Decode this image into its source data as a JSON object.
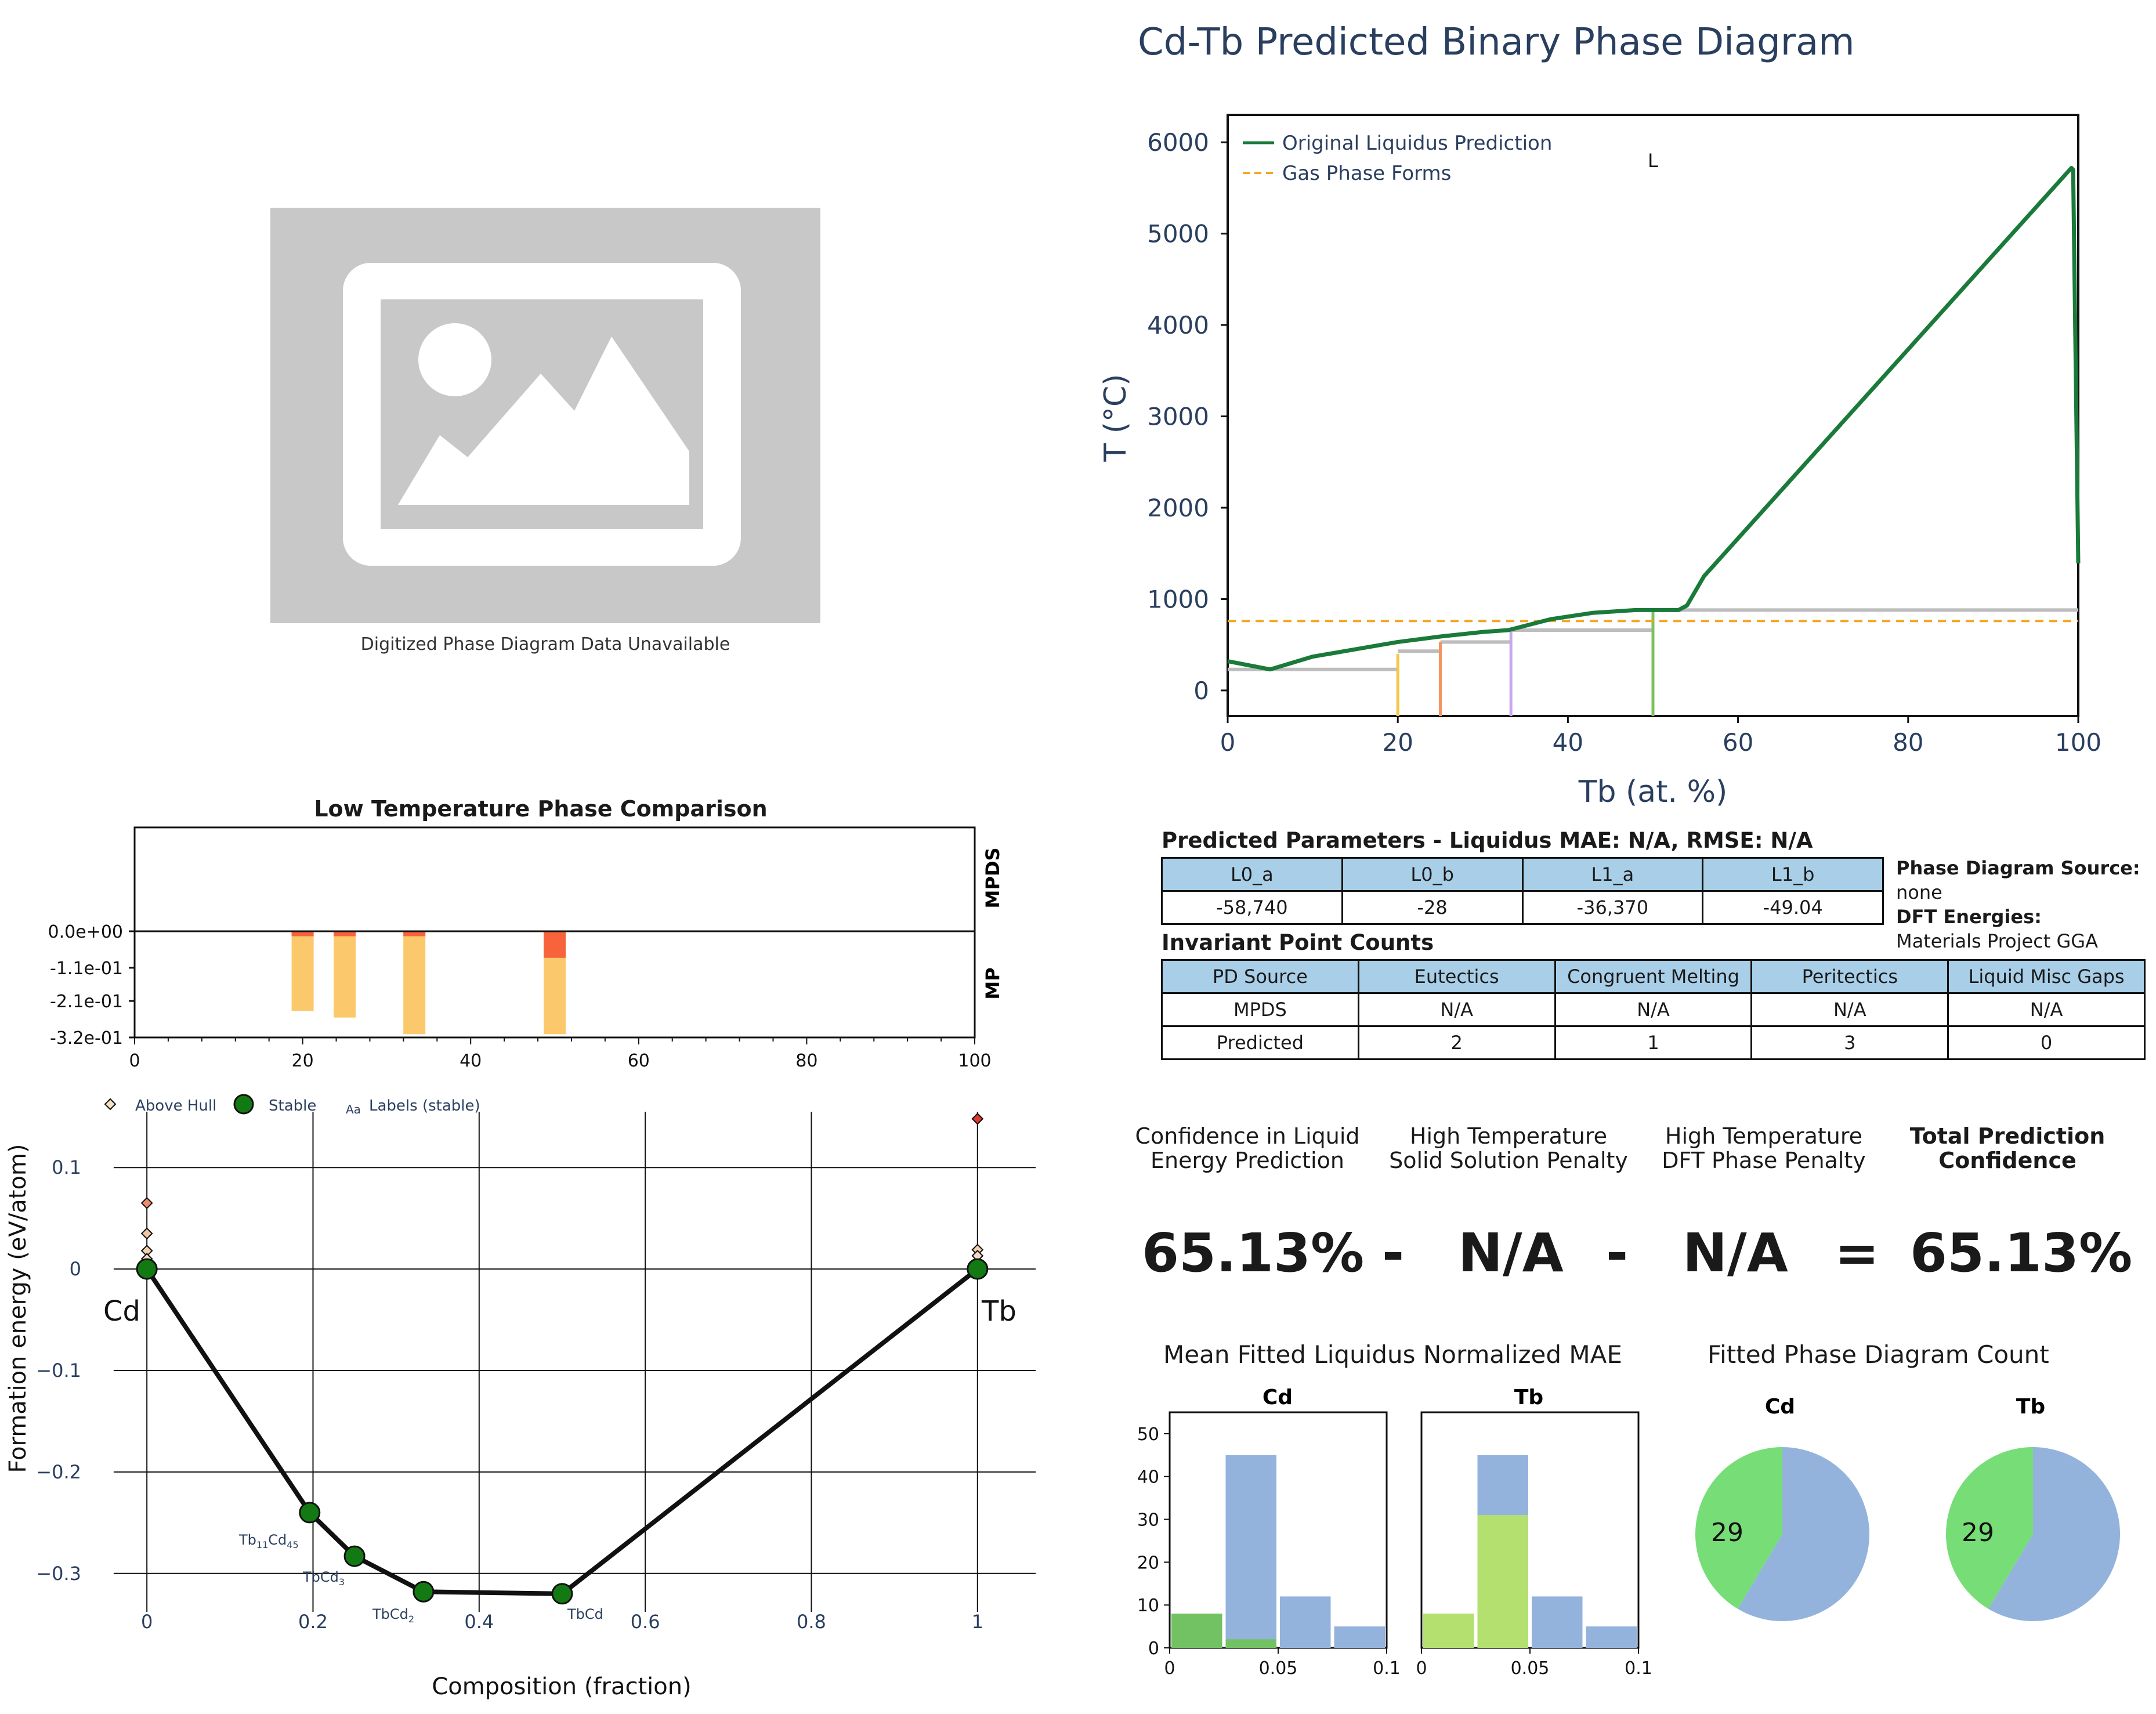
{
  "placeholder": {
    "caption": "Digitized Phase Diagram Data Unavailable",
    "icon": "image-placeholder-icon"
  },
  "phase_diagram": {
    "title": "Cd-Tb Predicted Binary Phase Diagram",
    "xlabel": "Tb (at. %)",
    "ylabel": "T (°C)",
    "legend": [
      "Original Liquidus Prediction",
      "Gas Phase Forms"
    ],
    "annotation": "L",
    "xticks": [
      "0",
      "20",
      "40",
      "60",
      "80",
      "100"
    ],
    "yticks": [
      "0",
      "1000",
      "2000",
      "3000",
      "4000",
      "5000",
      "6000"
    ],
    "colors": {
      "liquidus": "#1a7a3a",
      "gas": "#f5a623",
      "solid": "#bdbdbd"
    }
  },
  "params": {
    "title": "Predicted Parameters - Liquidus MAE: N/A, RMSE: N/A",
    "headers": [
      "L0_a",
      "L0_b",
      "L1_a",
      "L1_b"
    ],
    "values": [
      "-58,740",
      "-28",
      "-36,370",
      "-49.04"
    ],
    "source_label": "Phase Diagram Source:",
    "source_value": "none",
    "dft_label": "DFT Energies:",
    "dft_value": "Materials Project GGA"
  },
  "invariant": {
    "title": "Invariant Point Counts",
    "headers": [
      "PD Source",
      "Eutectics",
      "Congruent Melting",
      "Peritectics",
      "Liquid Misc Gaps"
    ],
    "rows": [
      [
        "MPDS",
        "N/A",
        "N/A",
        "N/A",
        "N/A"
      ],
      [
        "Predicted",
        "2",
        "1",
        "3",
        "0"
      ]
    ]
  },
  "confidence": {
    "headers": [
      [
        "Confidence in Liquid",
        "Energy Prediction"
      ],
      [
        "High Temperature",
        "Solid Solution Penalty"
      ],
      [
        "High Temperature",
        "DFT Phase Penalty"
      ],
      [
        "Total Prediction",
        "Confidence"
      ]
    ],
    "values": [
      "65.13%",
      "N/A",
      "N/A",
      "65.13%"
    ],
    "ops": [
      "-",
      "-",
      "="
    ]
  },
  "low_temp": {
    "title": "Low Temperature Phase Comparison",
    "right_labels": [
      "MPDS",
      "MP"
    ],
    "yticks": [
      "0.0e+00",
      "-1.1e-01",
      "-2.1e-01",
      "-3.2e-01"
    ],
    "xticks": [
      "0",
      "20",
      "40",
      "60",
      "80",
      "100"
    ]
  },
  "hull": {
    "legend": [
      "Above Hull",
      "Stable",
      "Labels (stable)"
    ],
    "legend_aa": "Aa",
    "xlabel": "Composition (fraction)",
    "ylabel": "Formation energy (eV/atom)",
    "xticks": [
      "0",
      "0.2",
      "0.4",
      "0.6",
      "0.8",
      "1"
    ],
    "yticks": [
      "0.1",
      "0",
      "−0.1",
      "−0.2",
      "−0.3"
    ],
    "end_labels": [
      "Cd",
      "Tb"
    ],
    "phase_labels": [
      {
        "base": "Tb",
        "sub1": "11",
        "mid": "Cd",
        "sub2": "45"
      },
      {
        "base": "TbCd",
        "sub1": "3",
        "mid": "",
        "sub2": ""
      },
      {
        "base": "TbCd",
        "sub1": "2",
        "mid": "",
        "sub2": ""
      },
      {
        "base": "TbCd",
        "sub1": "",
        "mid": "",
        "sub2": ""
      }
    ]
  },
  "mae": {
    "title": "Mean Fitted Liquidus Normalized MAE",
    "panels": [
      "Cd",
      "Tb"
    ],
    "yticks": [
      "0",
      "10",
      "20",
      "30",
      "40",
      "50"
    ],
    "xticks": [
      "0",
      "0.05",
      "0.1"
    ]
  },
  "count": {
    "title": "Fitted Phase Diagram Count",
    "panels": [
      "Cd",
      "Tb"
    ],
    "labels": [
      "29",
      "29"
    ]
  },
  "chart_data": [
    {
      "type": "line",
      "title": "Cd-Tb Predicted Binary Phase Diagram",
      "xlabel": "Tb (at. %)",
      "ylabel": "T (°C)",
      "xlim": [
        0,
        100
      ],
      "ylim": [
        -280,
        6300
      ],
      "legend_position": "top-left",
      "series": [
        {
          "name": "Original Liquidus Prediction",
          "x": [
            0,
            5,
            10,
            15,
            20,
            25,
            30,
            33,
            38,
            43,
            48,
            50,
            53,
            54,
            56,
            99.2,
            99.4,
            100
          ],
          "y": [
            320,
            230,
            370,
            450,
            530,
            590,
            640,
            660,
            780,
            850,
            880,
            880,
            880,
            930,
            1250,
            5720,
            5700,
            1390
          ]
        },
        {
          "name": "Gas Phase Forms",
          "x": [
            0,
            100
          ],
          "y": [
            760,
            760
          ]
        }
      ],
      "solid_lines": [
        {
          "x": [
            0,
            20
          ],
          "y": [
            230,
            230
          ]
        },
        {
          "x": [
            20,
            25
          ],
          "y": [
            430,
            430
          ]
        },
        {
          "x": [
            25,
            33.3
          ],
          "y": [
            530,
            530
          ]
        },
        {
          "x": [
            33.3,
            50
          ],
          "y": [
            660,
            660
          ]
        },
        {
          "x": [
            50,
            100
          ],
          "y": [
            880,
            880
          ]
        }
      ],
      "vertical_lines": [
        {
          "x": 20,
          "top": 400,
          "color": "#f2c94c"
        },
        {
          "x": 25,
          "top": 530,
          "color": "#f4945e"
        },
        {
          "x": 33.3,
          "top": 650,
          "color": "#c9a7ec"
        },
        {
          "x": 50,
          "top": 880,
          "color": "#7bc25b"
        }
      ]
    },
    {
      "type": "bar",
      "title": "Low Temperature Phase Comparison",
      "xlim": [
        0,
        100
      ],
      "ylim": [
        -0.32,
        0.32
      ],
      "series": [
        {
          "name": "MP",
          "x": [
            20,
            25,
            33.3,
            50
          ],
          "values": [
            -0.24,
            -0.26,
            -0.31,
            -0.31
          ],
          "color": "#fbc96b",
          "top_segment": [
            0.015,
            0.015,
            0.015,
            0.08
          ]
        }
      ]
    },
    {
      "type": "scatter",
      "xlabel": "Composition (fraction)",
      "ylabel": "Formation energy (eV/atom)",
      "xlim": [
        -0.1,
        1.07
      ],
      "ylim": [
        -0.355,
        0.155
      ],
      "series": [
        {
          "name": "Stable",
          "x": [
            0,
            0.196,
            0.25,
            0.333,
            0.5,
            1
          ],
          "y": [
            0,
            -0.24,
            -0.283,
            -0.318,
            -0.32,
            0
          ]
        },
        {
          "name": "Above Hull",
          "x": [
            0,
            0,
            0,
            0,
            0.25,
            1,
            1,
            1
          ],
          "y": [
            0.065,
            0.035,
            0.018,
            0.01,
            -0.28,
            0.148,
            0.019,
            0.013
          ]
        }
      ]
    },
    {
      "type": "bar",
      "title": "Mean Fitted Liquidus Normalized MAE",
      "panels": [
        {
          "name": "Cd",
          "bins": [
            0,
            0.025,
            0.05,
            0.075,
            0.1
          ],
          "series": [
            {
              "name": "total",
              "values": [
                8,
                45,
                12,
                5
              ]
            },
            {
              "name": "fitted",
              "values": [
                8,
                2,
                0,
                0
              ]
            }
          ]
        },
        {
          "name": "Tb",
          "bins": [
            0,
            0.025,
            0.05,
            0.075,
            0.1
          ],
          "series": [
            {
              "name": "total",
              "values": [
                8,
                45,
                12,
                5
              ]
            },
            {
              "name": "fitted",
              "values": [
                8,
                31,
                0,
                0
              ]
            }
          ]
        }
      ],
      "ylim": [
        0,
        55
      ]
    },
    {
      "type": "pie",
      "title": "Fitted Phase Diagram Count",
      "panels": [
        {
          "name": "Cd",
          "values": [
            29,
            41
          ],
          "labels": [
            "29",
            ""
          ]
        },
        {
          "name": "Tb",
          "values": [
            29,
            41
          ],
          "labels": [
            "29",
            ""
          ]
        }
      ]
    }
  ]
}
